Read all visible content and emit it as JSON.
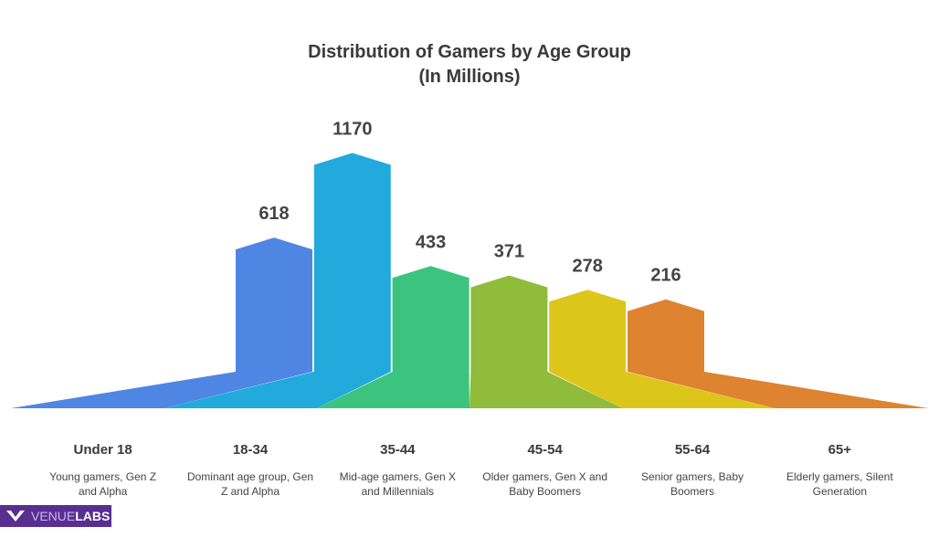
{
  "chart_data": {
    "type": "bar",
    "title": "Distribution of Gamers by Age Group",
    "subtitle": "(In Millions)",
    "categories": [
      "Under 18",
      "18-34",
      "35-44",
      "45-54",
      "55-64",
      "65+"
    ],
    "descriptions": [
      "Young gamers, Gen Z and Alpha",
      "Dominant age group, Gen Z and Alpha",
      "Mid-age gamers, Gen X and Millennials",
      "Older gamers, Gen X and Baby Boomers",
      "Senior gamers, Baby Boomers",
      "Elderly gamers, Silent Generation"
    ],
    "values": [
      618,
      1170,
      433,
      371,
      278,
      216
    ],
    "colors": [
      "#4f86e4",
      "#21aadb",
      "#3cc47f",
      "#8fbc3a",
      "#ddc61a",
      "#de8330"
    ]
  },
  "logo": {
    "light": "VENUE",
    "bold": "LABS"
  }
}
